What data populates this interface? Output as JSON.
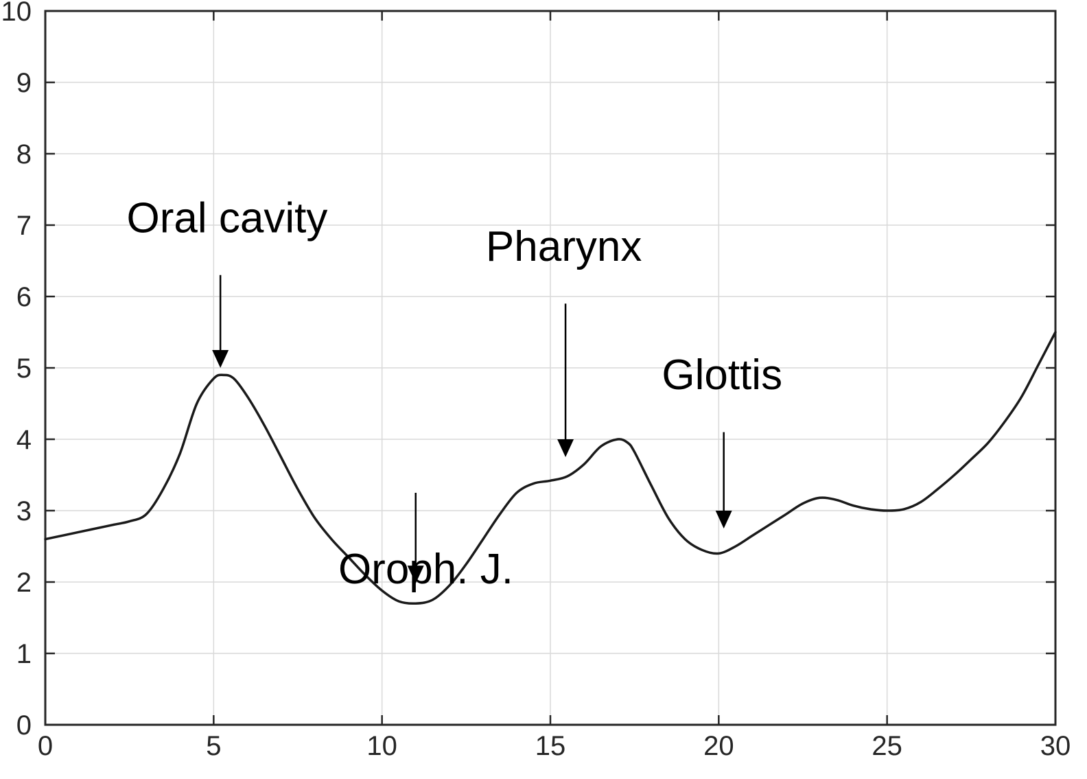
{
  "chart_data": {
    "type": "line",
    "title": "",
    "xlabel": "",
    "ylabel": "",
    "xlim": [
      0,
      30
    ],
    "ylim": [
      0,
      10
    ],
    "xticks": [
      0,
      5,
      10,
      15,
      20,
      25,
      30
    ],
    "yticks": [
      0,
      1,
      2,
      3,
      4,
      5,
      6,
      7,
      8,
      9,
      10
    ],
    "grid": true,
    "series": [
      {
        "color": "#1a1a1a",
        "x": [
          0,
          1,
          2,
          2.5,
          3,
          3.5,
          4,
          4.5,
          5,
          5.3,
          5.6,
          6,
          6.5,
          7,
          7.5,
          8,
          8.5,
          9,
          9.5,
          10,
          10.5,
          11,
          11.5,
          12,
          12.5,
          13,
          13.5,
          14,
          14.5,
          15,
          15.5,
          16,
          16.5,
          17,
          17.3,
          17.5,
          18,
          18.5,
          19,
          19.5,
          20,
          20.5,
          21,
          21.5,
          22,
          22.5,
          23,
          23.5,
          24,
          24.5,
          25,
          25.5,
          26,
          26.5,
          27,
          27.5,
          28,
          28.5,
          29,
          29.5,
          30
        ],
        "values": [
          2.6,
          2.7,
          2.8,
          2.85,
          2.95,
          3.3,
          3.8,
          4.5,
          4.85,
          4.9,
          4.85,
          4.6,
          4.2,
          3.75,
          3.3,
          2.9,
          2.6,
          2.35,
          2.1,
          1.88,
          1.73,
          1.7,
          1.75,
          1.95,
          2.25,
          2.6,
          2.95,
          3.25,
          3.38,
          3.42,
          3.48,
          3.65,
          3.9,
          4.0,
          3.95,
          3.82,
          3.35,
          2.9,
          2.6,
          2.45,
          2.4,
          2.5,
          2.65,
          2.8,
          2.95,
          3.1,
          3.18,
          3.15,
          3.07,
          3.02,
          3.0,
          3.02,
          3.12,
          3.3,
          3.5,
          3.72,
          3.95,
          4.25,
          4.6,
          5.05,
          5.5
        ]
      }
    ],
    "annotations": [
      {
        "label": "Oral cavity",
        "text_x": 5.4,
        "text_y": 6.9,
        "arrow_x": 5.2,
        "arrow_from": 6.3,
        "arrow_to": 5.0
      },
      {
        "label": "Oroph. J.",
        "text_x": 11.3,
        "text_y": 1.98,
        "arrow_x": 11.0,
        "arrow_from": 3.25,
        "arrow_to": 1.98
      },
      {
        "label": "Pharynx",
        "text_x": 15.4,
        "text_y": 6.5,
        "arrow_x": 15.45,
        "arrow_from": 5.9,
        "arrow_to": 3.75
      },
      {
        "label": "Glottis",
        "text_x": 20.1,
        "text_y": 4.7,
        "arrow_x": 20.15,
        "arrow_from": 4.1,
        "arrow_to": 2.75
      }
    ]
  }
}
